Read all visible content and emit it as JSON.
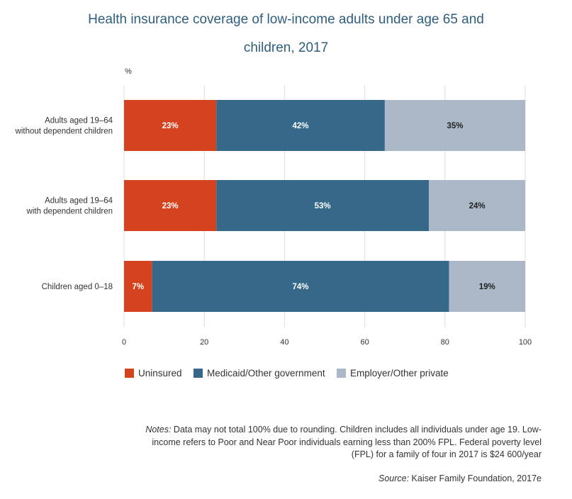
{
  "title_line1": "Health insurance coverage of low-income adults under age 65 and",
  "title_line2": "children, 2017",
  "colors": {
    "uninsured": "#d4421e",
    "medicaid": "#36688a",
    "private": "#abb8c7",
    "grid": "#dddddd",
    "title": "#2f5d7c"
  },
  "chart_data": {
    "type": "bar",
    "orientation": "horizontal",
    "stacked": true,
    "ylabel": "%",
    "xlim": [
      0,
      100
    ],
    "xticks": [
      0,
      20,
      40,
      60,
      80,
      100
    ],
    "grid": true,
    "legend_position": "bottom",
    "categories": [
      [
        "Adults aged 19–64",
        "without dependent children"
      ],
      [
        "Adults aged 19–64",
        "with dependent children"
      ],
      [
        "Children aged 0–18"
      ]
    ],
    "series": [
      {
        "name": "Uninsured",
        "color": "#d4421e",
        "values": [
          23,
          23,
          7
        ],
        "labels": [
          "23%",
          "23%",
          "7%"
        ]
      },
      {
        "name": "Medicaid/Other government",
        "color": "#36688a",
        "values": [
          42,
          53,
          74
        ],
        "labels": [
          "42%",
          "53%",
          "74%"
        ]
      },
      {
        "name": "Employer/Other private",
        "color": "#abb8c7",
        "values": [
          35,
          24,
          19
        ],
        "labels": [
          "35%",
          "24%",
          "19%"
        ]
      }
    ]
  },
  "legend": {
    "uninsured": "Uninsured",
    "medicaid": "Medicaid/Other government",
    "private": "Employer/Other private"
  },
  "notes_label": "Notes:",
  "notes_text": " Data may not total 100% due to rounding. Children includes all individuals under age 19. Low-income refers to Poor and Near Poor individuals earning less than 200% FPL. Federal poverty level (FPL) for a family of four in 2017 is $24 600/year",
  "source_label": "Source:",
  "source_text": " Kaiser Family Foundation, 2017e"
}
